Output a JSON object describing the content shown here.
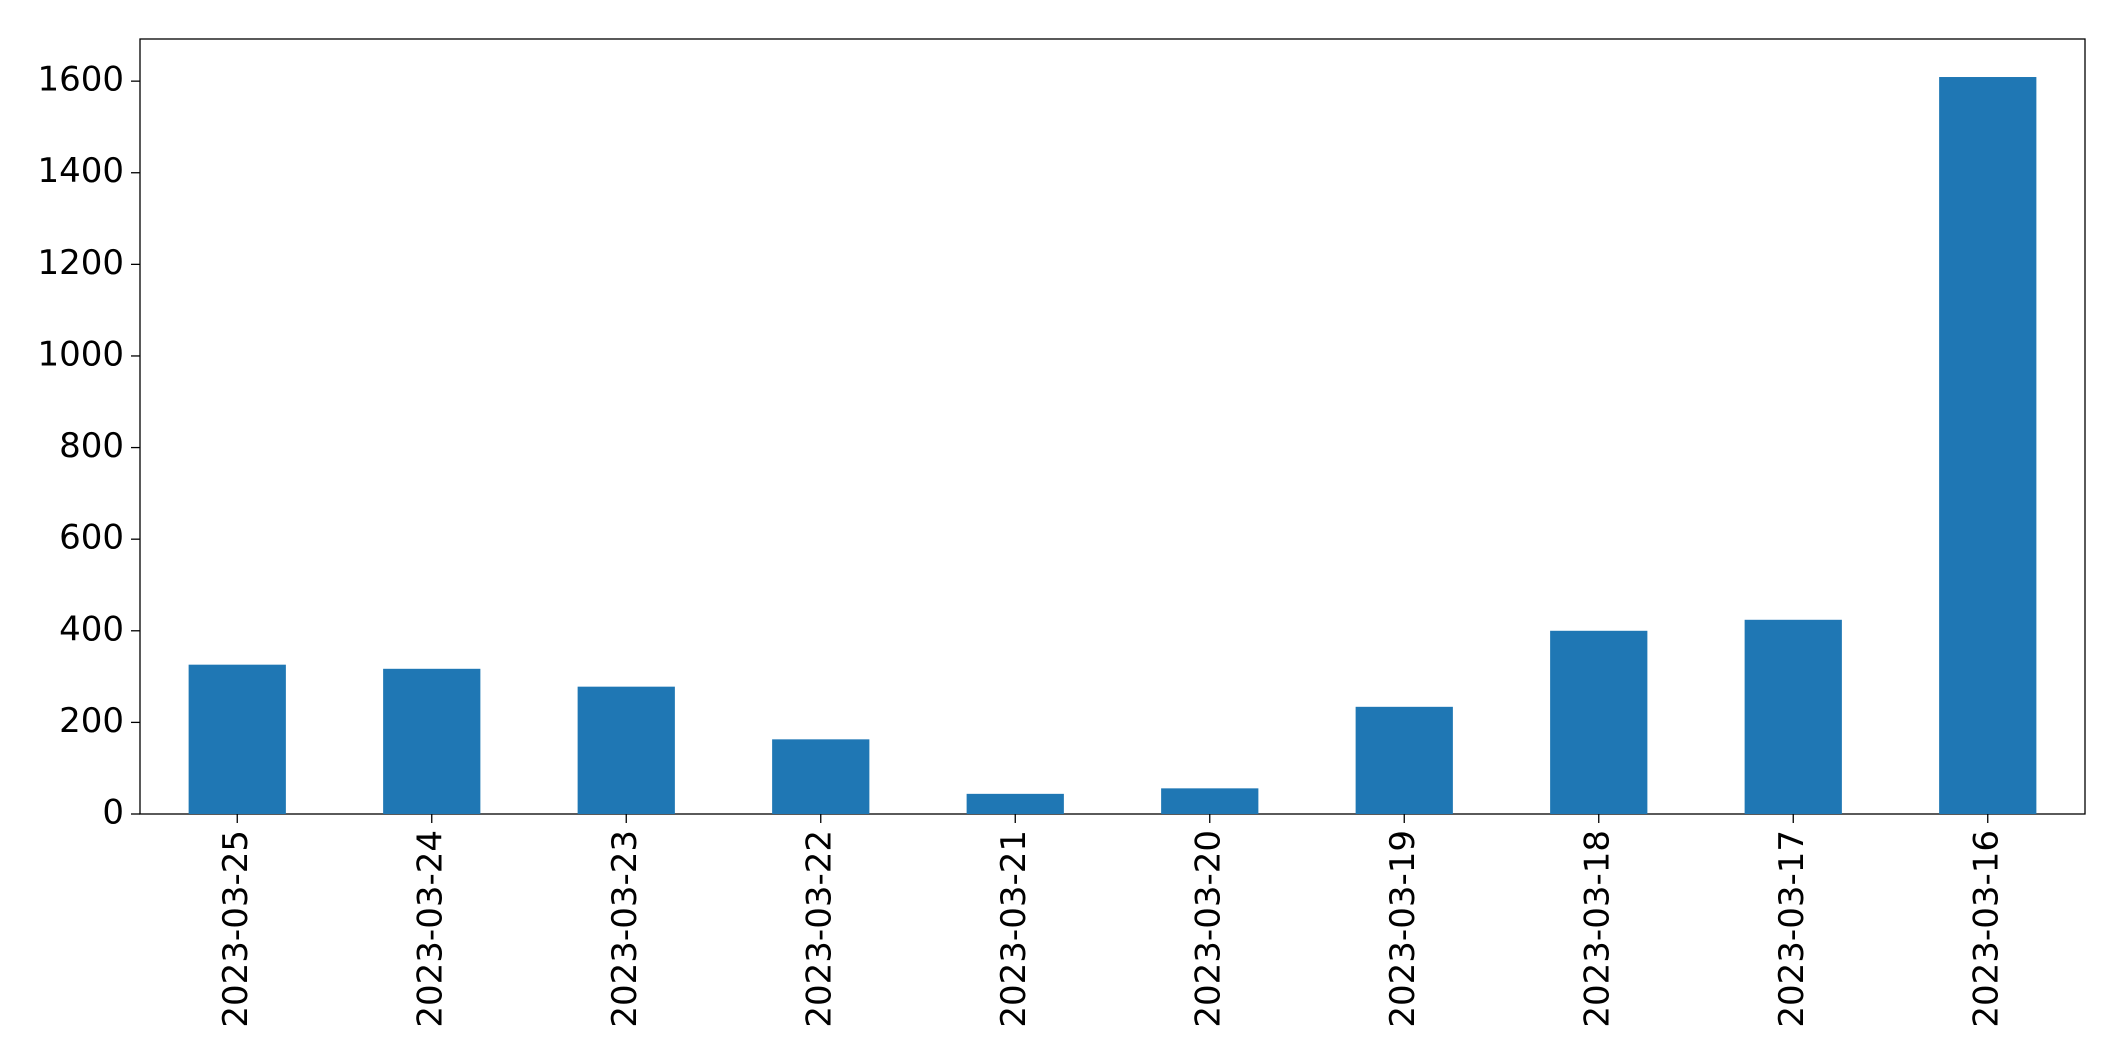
{
  "chart_data": {
    "type": "bar",
    "categories": [
      "2023-03-25",
      "2023-03-24",
      "2023-03-23",
      "2023-03-22",
      "2023-03-21",
      "2023-03-20",
      "2023-03-19",
      "2023-03-18",
      "2023-03-17",
      "2023-03-16"
    ],
    "values": [
      326,
      317,
      278,
      163,
      44,
      56,
      234,
      400,
      424,
      1609
    ],
    "color": "#1f77b4",
    "ylim": [
      0,
      1692
    ],
    "yticks": [
      0,
      200,
      400,
      600,
      800,
      1000,
      1200,
      1400,
      1600
    ],
    "grid": false
  }
}
